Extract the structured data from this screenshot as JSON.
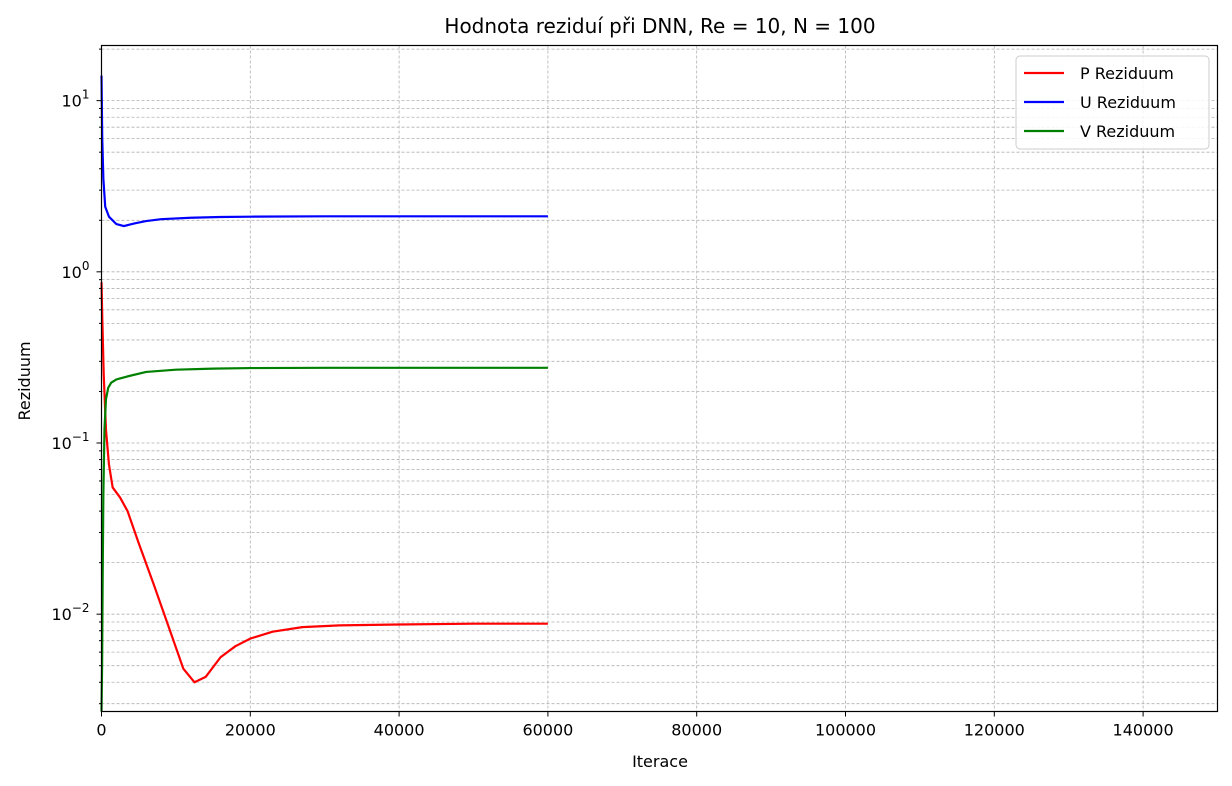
{
  "chart_data": {
    "type": "line",
    "title": "Hodnota reziduí při DNN, Re = 10, N = 100",
    "xlabel": "Iterace",
    "ylabel": "Reziduum",
    "xlim": [
      0,
      150000
    ],
    "ylim": [
      0.0027,
      21
    ],
    "yscale": "log",
    "grid": true,
    "legend_position": "top-right",
    "x_ticks": [
      0,
      20000,
      40000,
      60000,
      80000,
      100000,
      120000,
      140000
    ],
    "x_tick_labels": [
      "0",
      "20000",
      "40000",
      "60000",
      "80000",
      "100000",
      "120000",
      "140000"
    ],
    "y_ticks": [
      0.01,
      0.1,
      1,
      10
    ],
    "y_tick_labels": [
      {
        "base": "10",
        "exp": "−2"
      },
      {
        "base": "10",
        "exp": "−1"
      },
      {
        "base": "10",
        "exp": "0"
      },
      {
        "base": "10",
        "exp": "1"
      }
    ],
    "series": [
      {
        "name": "P Reziduum",
        "color": "#ff0000",
        "points": [
          [
            0,
            0.87
          ],
          [
            100,
            0.55
          ],
          [
            300,
            0.25
          ],
          [
            600,
            0.12
          ],
          [
            1000,
            0.075
          ],
          [
            1500,
            0.055
          ],
          [
            2500,
            0.048
          ],
          [
            3500,
            0.04
          ],
          [
            5000,
            0.026
          ],
          [
            7000,
            0.015
          ],
          [
            9000,
            0.0085
          ],
          [
            11000,
            0.0048
          ],
          [
            12500,
            0.004
          ],
          [
            14000,
            0.0043
          ],
          [
            16000,
            0.0056
          ],
          [
            18000,
            0.0065
          ],
          [
            20000,
            0.0072
          ],
          [
            23000,
            0.0079
          ],
          [
            27000,
            0.0084
          ],
          [
            32000,
            0.0086
          ],
          [
            40000,
            0.0087
          ],
          [
            50000,
            0.0088
          ],
          [
            60000,
            0.0088
          ]
        ]
      },
      {
        "name": "U Reziduum",
        "color": "#0000ff",
        "points": [
          [
            0,
            14
          ],
          [
            100,
            6
          ],
          [
            250,
            3.5
          ],
          [
            500,
            2.4
          ],
          [
            1000,
            2.1
          ],
          [
            2000,
            1.9
          ],
          [
            3000,
            1.85
          ],
          [
            4500,
            1.92
          ],
          [
            6000,
            1.98
          ],
          [
            8000,
            2.03
          ],
          [
            12000,
            2.07
          ],
          [
            16000,
            2.09
          ],
          [
            20000,
            2.1
          ],
          [
            30000,
            2.11
          ],
          [
            40000,
            2.11
          ],
          [
            50000,
            2.11
          ],
          [
            60000,
            2.11
          ]
        ]
      },
      {
        "name": "V Reziduum",
        "color": "#008000",
        "points": [
          [
            0,
            0.0027
          ],
          [
            80,
            0.005
          ],
          [
            150,
            0.015
          ],
          [
            250,
            0.05
          ],
          [
            400,
            0.12
          ],
          [
            600,
            0.18
          ],
          [
            900,
            0.21
          ],
          [
            1300,
            0.225
          ],
          [
            2000,
            0.235
          ],
          [
            3500,
            0.245
          ],
          [
            6000,
            0.26
          ],
          [
            10000,
            0.268
          ],
          [
            15000,
            0.272
          ],
          [
            20000,
            0.274
          ],
          [
            30000,
            0.275
          ],
          [
            40000,
            0.275
          ],
          [
            50000,
            0.275
          ],
          [
            60000,
            0.275
          ]
        ]
      }
    ]
  }
}
